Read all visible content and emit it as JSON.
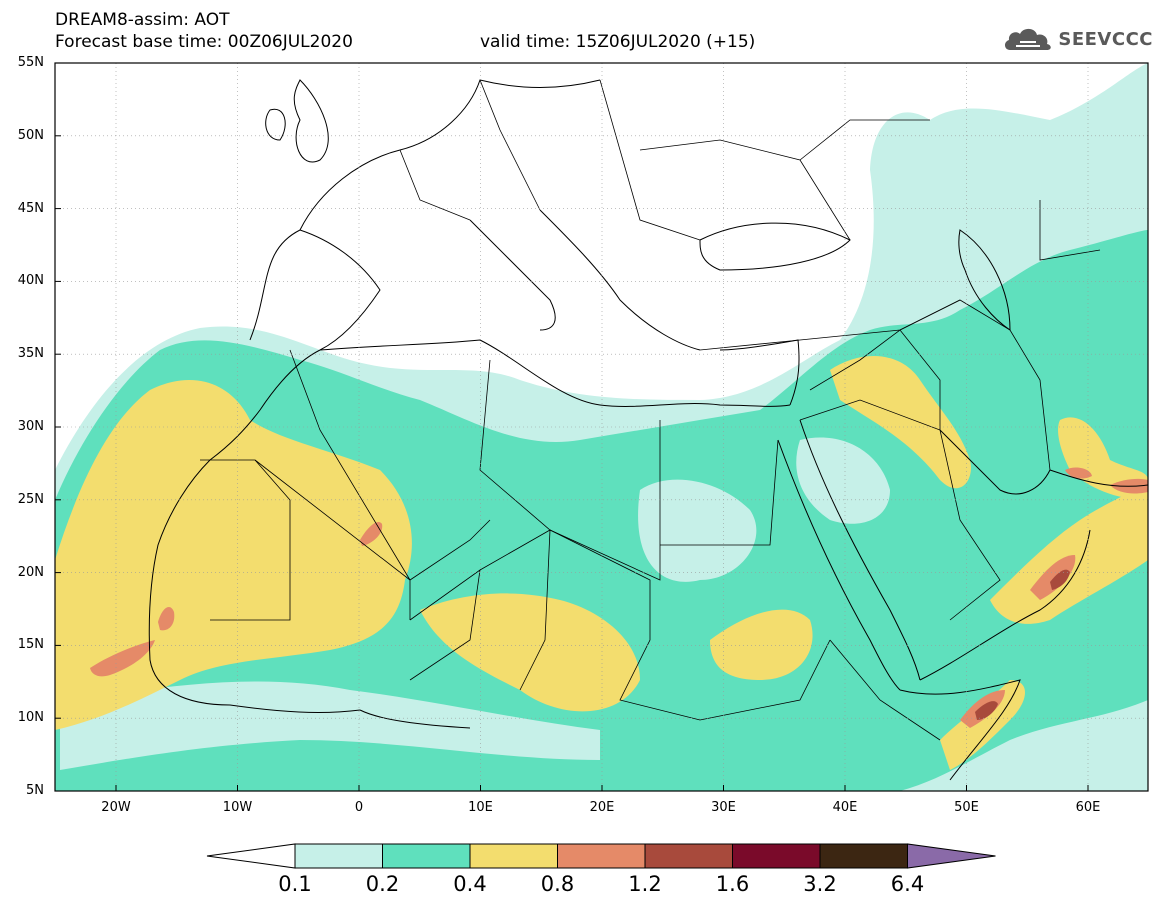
{
  "header": {
    "line1": "DREAM8-assim: AOT",
    "line2": "Forecast base time: 00Z06JUL2020",
    "valid": "valid time: 15Z06JUL2020 (+15)"
  },
  "logo": {
    "text": "SEEVCCC",
    "icon": "cloud-icon"
  },
  "map": {
    "lat_labels": [
      "55N",
      "50N",
      "45N",
      "40N",
      "35N",
      "30N",
      "25N",
      "20N",
      "15N",
      "10N",
      "5N"
    ],
    "lon_labels": [
      "20W",
      "10W",
      "0",
      "10E",
      "20E",
      "30E",
      "40E",
      "50E",
      "60E"
    ],
    "colors": {
      "c1": "#c6f0e8",
      "c2": "#5fe0bd",
      "c3": "#f3dd6e",
      "c4": "#e58a68",
      "c5": "#a84a3c",
      "c6": "#7a0a2a",
      "c7": "#3c2612",
      "c8": "#8a6aa8"
    }
  },
  "colorbar": {
    "labels": [
      "0.1",
      "0.2",
      "0.4",
      "0.8",
      "1.2",
      "1.6",
      "3.2",
      "6.4"
    ],
    "colors": [
      "#ffffff",
      "#c6f0e8",
      "#5fe0bd",
      "#f3dd6e",
      "#e58a68",
      "#a84a3c",
      "#7a0a2a",
      "#3c2612",
      "#8a6aa8"
    ]
  }
}
